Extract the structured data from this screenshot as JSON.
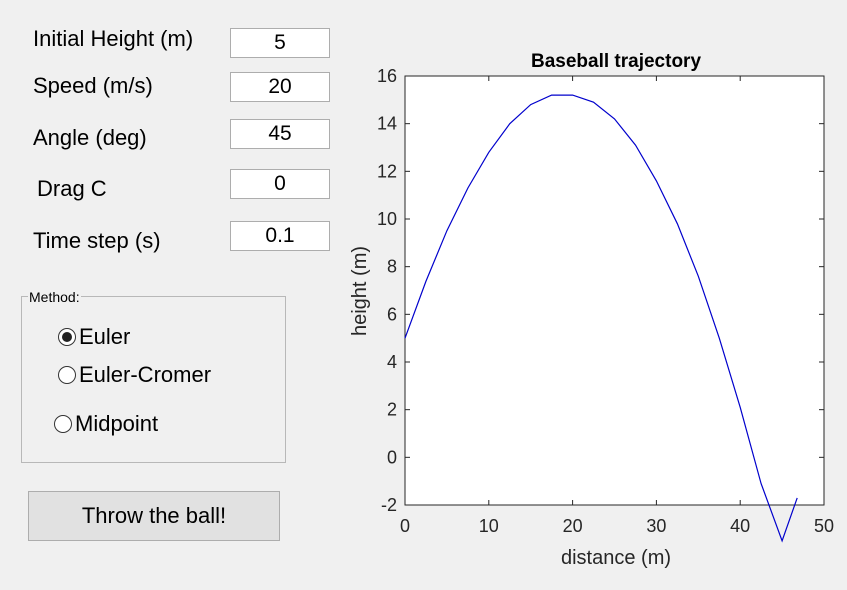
{
  "inputs": {
    "initial_height": {
      "label": "Initial Height (m)",
      "value": "5"
    },
    "speed": {
      "label": "Speed (m/s)",
      "value": "20"
    },
    "angle": {
      "label": "Angle (deg)",
      "value": "45"
    },
    "drag": {
      "label": "Drag C",
      "value": "0"
    },
    "time_step": {
      "label": "Time step (s)",
      "value": "0.1"
    }
  },
  "method": {
    "title": "Method:",
    "options": [
      {
        "label": "Euler",
        "selected": true
      },
      {
        "label": "Euler-Cromer",
        "selected": false
      },
      {
        "label": "Midpoint",
        "selected": false
      }
    ]
  },
  "button": {
    "label": "Throw the ball!"
  },
  "colors": {
    "line": "#0000cc",
    "background": "#f0f0f0"
  },
  "chart_data": {
    "type": "line",
    "title": "Baseball trajectory",
    "xlabel": "distance (m)",
    "ylabel": "height (m)",
    "xlim": [
      0,
      50
    ],
    "ylim": [
      -2,
      16
    ],
    "xticks": [
      0,
      10,
      20,
      30,
      40,
      50
    ],
    "yticks": [
      -2,
      0,
      2,
      4,
      6,
      8,
      10,
      12,
      14,
      16
    ],
    "grid": false,
    "series": [
      {
        "x": [
          0,
          2.5,
          5,
          7.5,
          10,
          12.5,
          15,
          17.5,
          20,
          22.5,
          25,
          27.5,
          30,
          32.5,
          35,
          37.5,
          40,
          42.5,
          45,
          46.8
        ],
        "y": [
          5.0,
          7.38,
          9.51,
          11.3,
          12.8,
          14.0,
          14.8,
          15.2,
          15.2,
          14.9,
          14.2,
          13.1,
          11.6,
          9.8,
          7.6,
          5.0,
          2.1,
          -1.1,
          -3.5,
          -1.7
        ]
      }
    ]
  }
}
